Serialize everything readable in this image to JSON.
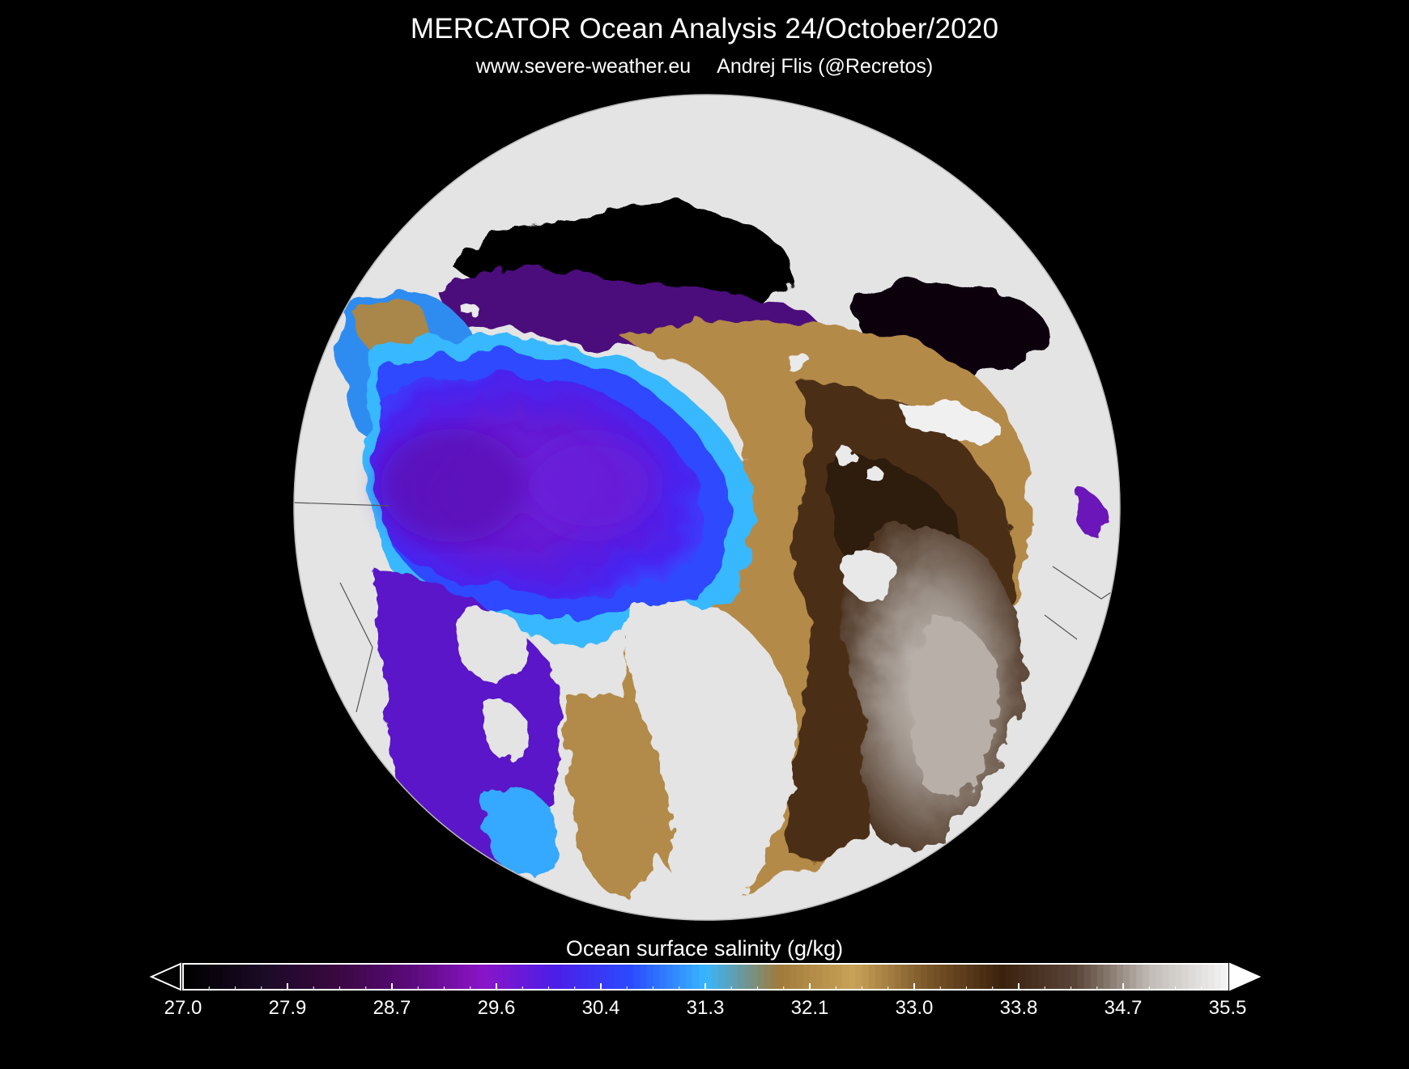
{
  "header": {
    "title": "MERCATOR Ocean Analysis  24/October/2020",
    "source": "www.severe-weather.eu",
    "author": "Andrej Flis (@Recretos)"
  },
  "colorbar": {
    "label": "Ocean surface salinity (g/kg)",
    "min": 27.0,
    "max": 35.5,
    "ticks": [
      "27.0",
      "27.9",
      "28.7",
      "29.6",
      "30.4",
      "31.3",
      "32.1",
      "33.0",
      "33.8",
      "34.7",
      "35.5"
    ],
    "colors": [
      "#000000",
      "#1a0a25",
      "#38083f",
      "#5a0a78",
      "#8a14c8",
      "#4b1fe8",
      "#2b4bff",
      "#36b6ff",
      "#a07a3a",
      "#c9a258",
      "#7a5528",
      "#3b220e",
      "#5a4438",
      "#c2bcb6",
      "#f2f2f2"
    ],
    "extend": "both"
  },
  "map": {
    "land_color": "#e4e4e4",
    "background_color": "#000000",
    "projection": "polar-stereographic"
  }
}
